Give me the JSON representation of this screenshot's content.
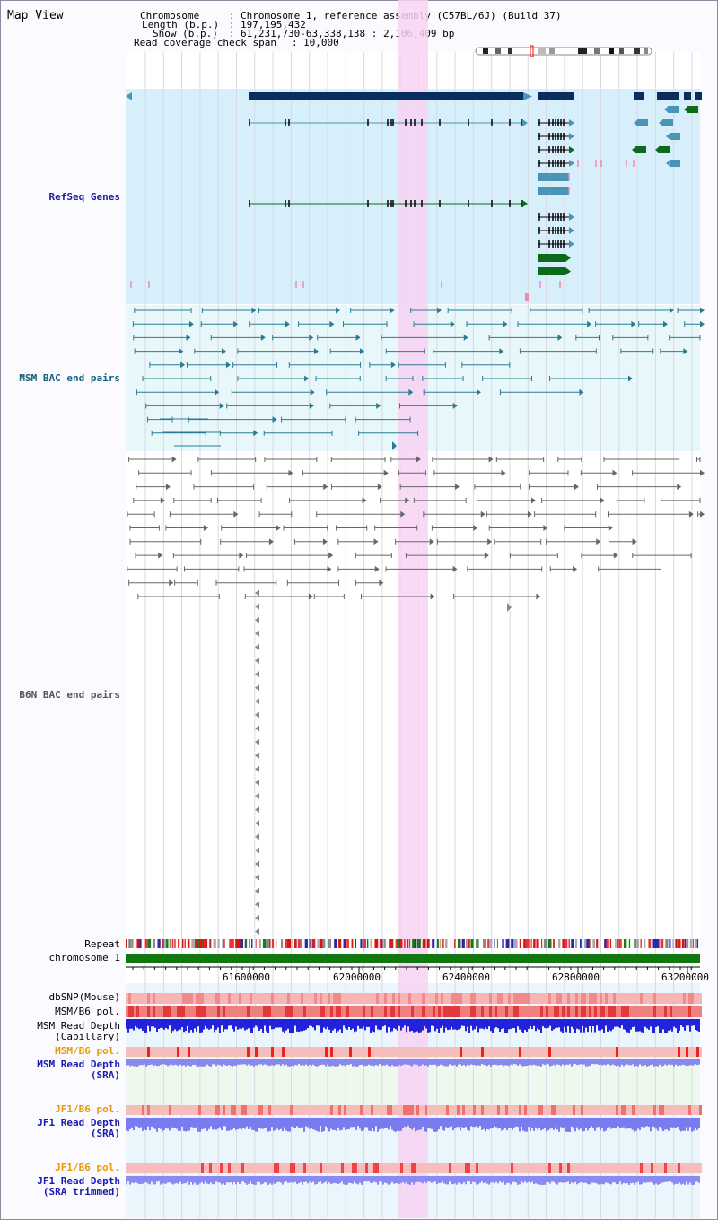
{
  "title": "Map View",
  "info": {
    "chromosome_key": "Chromosome",
    "chromosome_val": "Chromosome 1, reference assembly (C57BL/6J) (Build 37)",
    "length_key": "Length (b.p.)",
    "length_val": "197,195,432",
    "show_key": "Show (b.p.)",
    "show_val": "61,231,730-63,338,138 : 2,106,409 bp",
    "coverage_key": "Read coverage check span",
    "coverage_val": "10,000"
  },
  "tracks": {
    "refseq": "RefSeq Genes",
    "msm_bac": "MSM BAC end pairs",
    "b6n_bac": "B6N BAC end pairs",
    "repeat": "Repeat",
    "chromosome": "chromosome 1",
    "dbsnp": "dbSNP(Mouse)",
    "msm_b6_pol_1": "MSM/B6 pol.",
    "msm_depth_cap_1": "MSM Read Depth",
    "msm_depth_cap_2": "(Capillary)",
    "msm_b6_pol_2": "MSM/B6 pol.",
    "msm_depth_sra_1": "MSM Read Depth",
    "msm_depth_sra_2": "(SRA)",
    "jf1_b6_pol_1": "JF1/B6 pol.",
    "jf1_depth_sra_1": "JF1 Read Depth",
    "jf1_depth_sra_2": "(SRA)",
    "jf1_b6_pol_2": "JF1/B6 pol.",
    "jf1_depth_trim_1": "JF1 Read Depth",
    "jf1_depth_trim_2": "(SRA trimmed)"
  },
  "axis": {
    "ticks": [
      "61600000",
      "62000000",
      "62400000",
      "62800000",
      "63200000"
    ]
  },
  "colors": {
    "refseq_bg": "#d7effb",
    "msm_bg": "#e8f8fa",
    "highlight": "#f7d4f2",
    "refseq_label": "#1a1aa0",
    "msm_label": "#17607a",
    "b6n_label": "#555555",
    "pol_orange": "#e89a00",
    "depth_blue": "#1a1ab0",
    "chrom_green": "#117711"
  }
}
